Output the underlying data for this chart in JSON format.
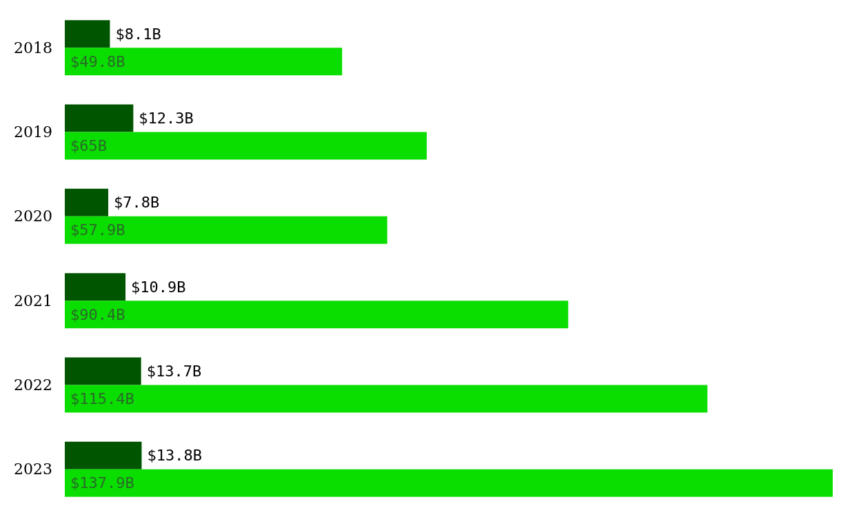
{
  "chart_data": {
    "type": "bar",
    "orientation": "horizontal",
    "categories": [
      "2018",
      "2019",
      "2020",
      "2021",
      "2022",
      "2023"
    ],
    "series": [
      {
        "color": "#005500",
        "values": [
          8.1,
          12.3,
          7.8,
          10.9,
          13.7,
          13.8
        ],
        "value_labels": [
          "$8.1B",
          "$12.3B",
          "$7.8B",
          "$10.9B",
          "$13.7B",
          "$13.8B"
        ]
      },
      {
        "color": "#0add00",
        "values": [
          49.8,
          65,
          57.9,
          90.4,
          115.4,
          137.9
        ],
        "value_labels": [
          "$49.8B",
          "$65B",
          "$57.9B",
          "$90.4B",
          "$115.4B",
          "$137.9B"
        ]
      }
    ],
    "tick_labels": "y",
    "grid": false
  }
}
